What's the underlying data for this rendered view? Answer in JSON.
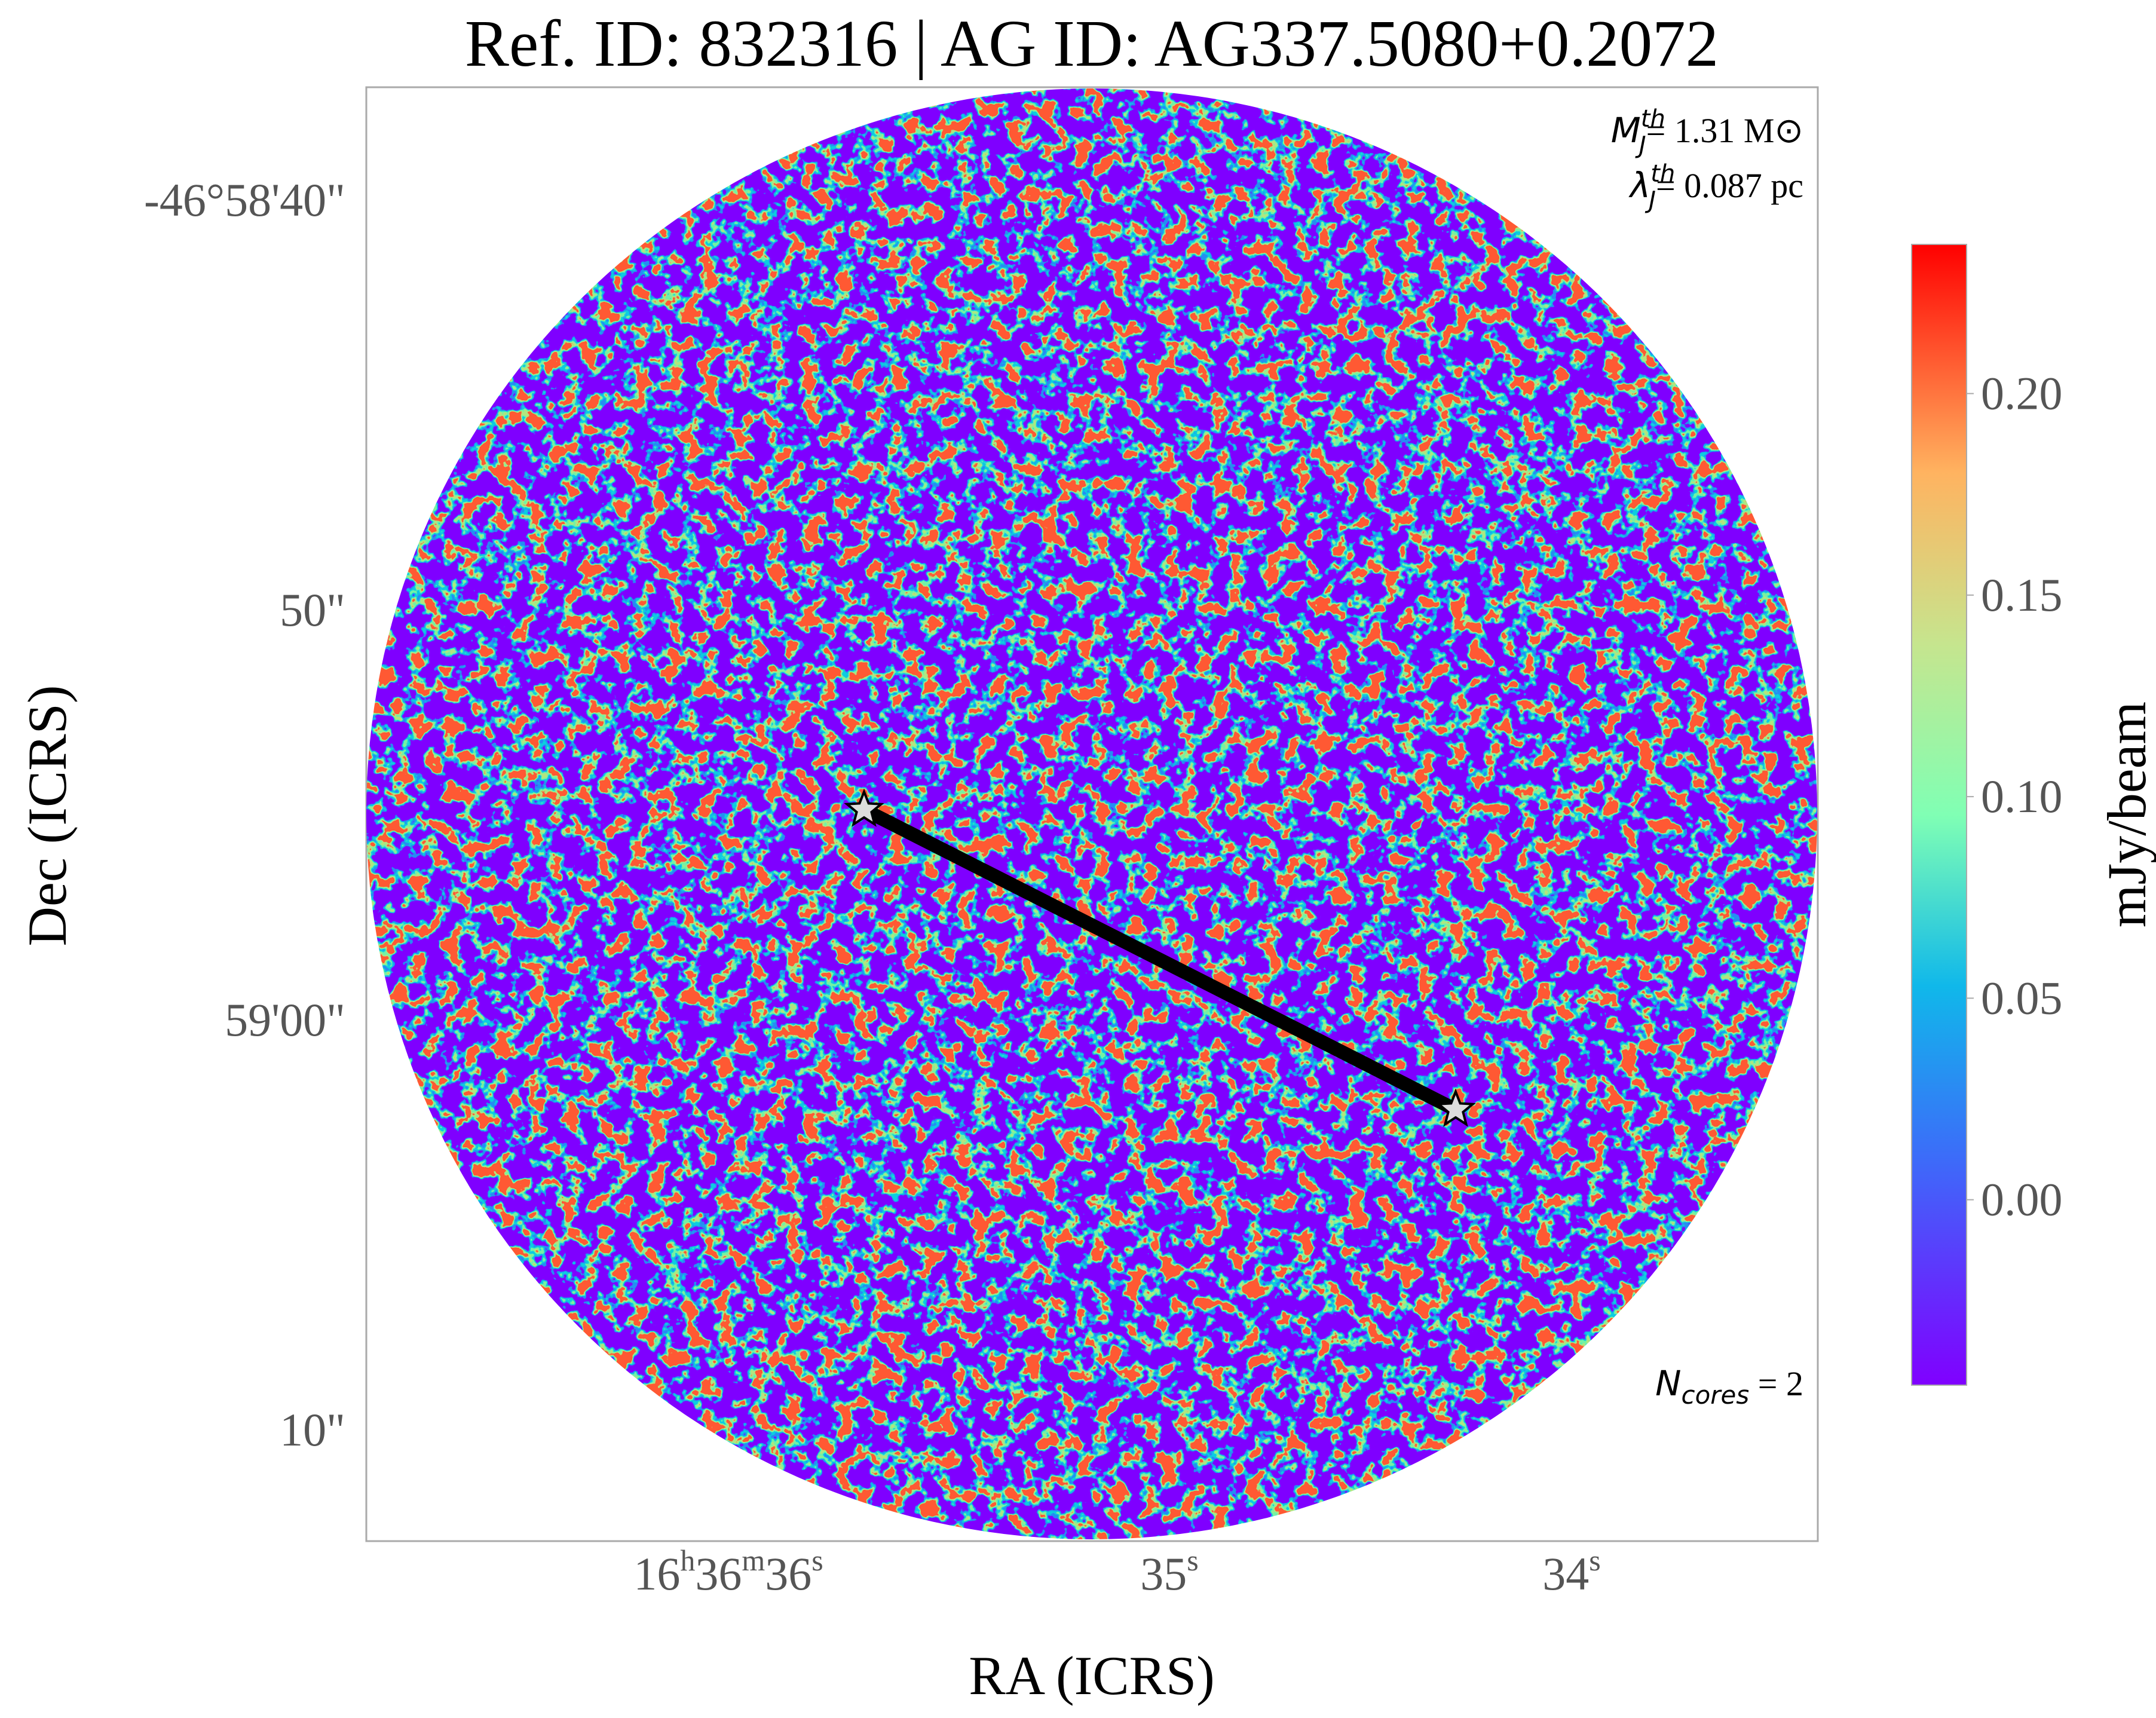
{
  "chart_data": {
    "type": "image",
    "title": "Ref. ID: 832316 | AG ID: AG337.5080+0.2072",
    "xlabel": "RA (ICRS)",
    "ylabel": "Dec (ICRS)",
    "xticks": [
      [
        [
          "16",
          "h"
        ],
        [
          "36",
          "m"
        ],
        [
          "36",
          "s"
        ]
      ],
      [
        [
          "35",
          "s"
        ]
      ],
      [
        [
          "34",
          "s"
        ]
      ]
    ],
    "yticks": [
      "-46°58'40\"",
      "50\"",
      "59'00\"",
      "10\""
    ],
    "annotations": [
      {
        "symbol": "M",
        "sub": "J",
        "sup": "th",
        "text": "= 1.31 M⊙"
      },
      {
        "symbol": "λ",
        "sub": "J",
        "sup": "th",
        "text": "= 0.087 pc"
      }
    ],
    "ncores": {
      "symbol": "N",
      "sub": "cores",
      "text": " = 2"
    },
    "colorbar": {
      "label": "mJy/beam",
      "clim": [
        -0.046,
        0.237
      ],
      "ticks": [
        {
          "value": 0,
          "label": "0.00"
        },
        {
          "value": 0.05,
          "label": "0.05"
        },
        {
          "value": 0.1,
          "label": "0.10"
        },
        {
          "value": 0.15,
          "label": "0.15"
        },
        {
          "value": 0.2,
          "label": "0.20"
        }
      ],
      "cmap": "rainbow"
    }
  }
}
